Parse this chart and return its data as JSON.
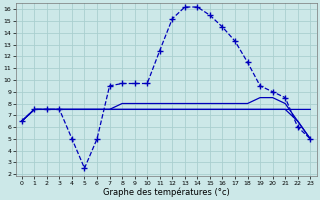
{
  "xlabel": "Graphe des températures (°c)",
  "bg_color": "#cce8e8",
  "grid_color": "#aacfcf",
  "line_color": "#0000bb",
  "xlim": [
    -0.5,
    23.5
  ],
  "ylim": [
    1.8,
    16.5
  ],
  "xticks": [
    0,
    1,
    2,
    3,
    4,
    5,
    6,
    7,
    8,
    9,
    10,
    11,
    12,
    13,
    14,
    15,
    16,
    17,
    18,
    19,
    20,
    21,
    22,
    23
  ],
  "yticks": [
    2,
    3,
    4,
    5,
    6,
    7,
    8,
    9,
    10,
    11,
    12,
    13,
    14,
    15,
    16
  ],
  "main_x": [
    0,
    1,
    2,
    3,
    4,
    5,
    6,
    7,
    8,
    9,
    10,
    11,
    12,
    13,
    14,
    15,
    16,
    17,
    18,
    19,
    20,
    21,
    22,
    23
  ],
  "main_y": [
    6.5,
    7.5,
    7.5,
    7.5,
    5.0,
    2.5,
    5.0,
    9.5,
    9.7,
    9.7,
    9.7,
    12.5,
    15.2,
    16.2,
    16.2,
    15.5,
    14.5,
    13.3,
    11.5,
    9.5,
    9.0,
    8.5,
    6.0,
    5.0
  ],
  "flat1_x": [
    0,
    1,
    2,
    3,
    4,
    5,
    6,
    7,
    8,
    9,
    10,
    11,
    12,
    13,
    14,
    15,
    16,
    17,
    18,
    19,
    20,
    21,
    22,
    23
  ],
  "flat1_y": [
    6.5,
    7.5,
    7.5,
    7.5,
    7.5,
    7.5,
    7.5,
    7.5,
    7.5,
    7.5,
    7.5,
    7.5,
    7.5,
    7.5,
    7.5,
    7.5,
    7.5,
    7.5,
    7.5,
    7.5,
    7.5,
    7.5,
    6.5,
    5.0
  ],
  "flat2_x": [
    0,
    1,
    2,
    3,
    4,
    5,
    6,
    7,
    8,
    9,
    10,
    11,
    12,
    13,
    14,
    15,
    16,
    17,
    18,
    19,
    20,
    21,
    22,
    23
  ],
  "flat2_y": [
    6.5,
    7.5,
    7.5,
    7.5,
    7.5,
    7.5,
    7.5,
    7.5,
    7.5,
    7.5,
    7.5,
    7.5,
    7.5,
    7.5,
    7.5,
    7.5,
    7.5,
    7.5,
    7.5,
    7.5,
    7.5,
    7.5,
    7.5,
    7.5
  ],
  "flat3_x": [
    0,
    1,
    2,
    3,
    4,
    5,
    6,
    7,
    8,
    9,
    10,
    11,
    12,
    13,
    14,
    15,
    16,
    17,
    18,
    19,
    20,
    21,
    22,
    23
  ],
  "flat3_y": [
    6.5,
    7.5,
    7.5,
    7.5,
    7.5,
    7.5,
    7.5,
    7.5,
    8.0,
    8.0,
    8.0,
    8.0,
    8.0,
    8.0,
    8.0,
    8.0,
    8.0,
    8.0,
    8.0,
    8.5,
    8.5,
    8.0,
    6.5,
    5.0
  ]
}
